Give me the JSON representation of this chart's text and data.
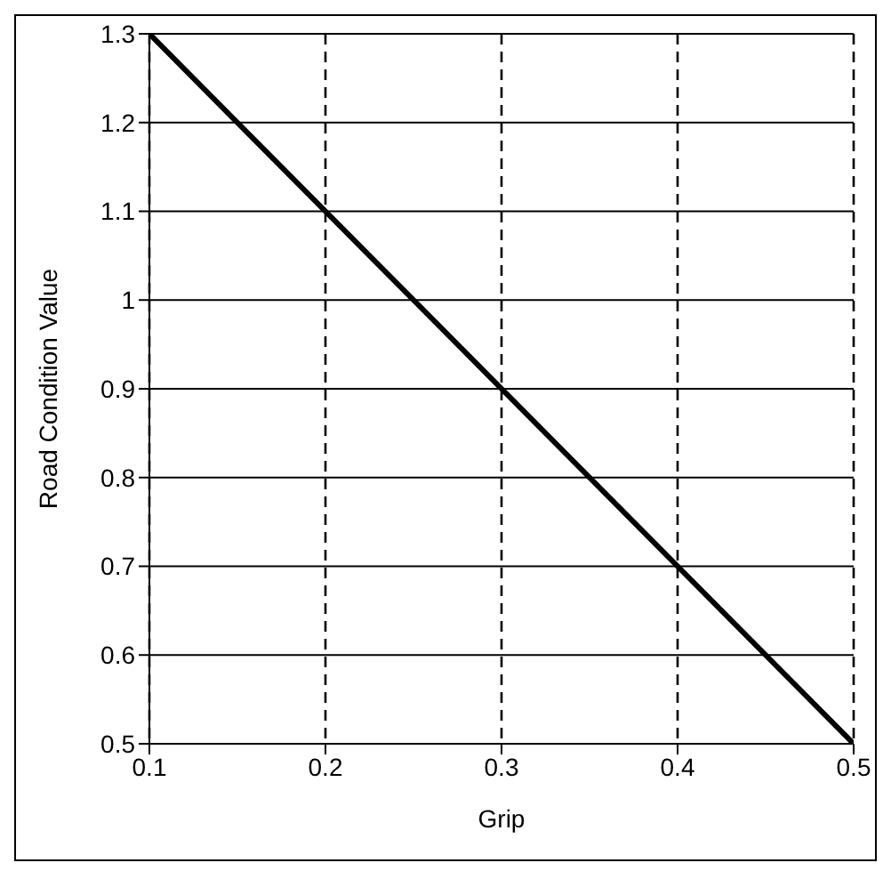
{
  "chart_data": {
    "type": "line",
    "xlabel": "Grip",
    "ylabel": "Road Condition Value",
    "x": [
      0.1,
      0.5
    ],
    "series": [
      {
        "color": "#000000",
        "values": [
          1.3,
          0.5
        ]
      }
    ],
    "xlim": [
      0.1,
      0.5
    ],
    "xticks": [
      0.1,
      0.2,
      0.3,
      0.4,
      0.5
    ],
    "ylim": [
      0.5,
      1.3
    ],
    "yticks": [
      0.5,
      0.6,
      0.7,
      0.8,
      0.9,
      1,
      1.1,
      1.2,
      1.3
    ],
    "grid": true,
    "marker": "none",
    "line_style": "solid"
  }
}
